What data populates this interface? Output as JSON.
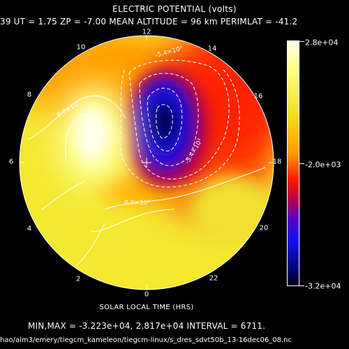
{
  "header": {
    "title": "ELECTRIC POTENTIAL (volts)",
    "params": "39   UT =   1.75   ZP =   -7.00   MEAN ALTITUDE =   96 km   PERIMLAT = -41.2"
  },
  "hour_labels": [
    "12",
    "14",
    "16",
    "18",
    "20",
    "22",
    "0",
    "2",
    "4",
    "6",
    "8",
    "10"
  ],
  "contour_labels": [
    "-5.4×10³",
    "-5.4×10³",
    "8.0×10³",
    "8.0×10³"
  ],
  "x_axis_label": "SOLAR LOCAL TIME (HRS)",
  "colorbar": {
    "max_label": "2.8e+04",
    "mid_label": "-2.0e+03",
    "min_label": "-3.2e+04"
  },
  "footer": {
    "minmax": "MIN,MAX = -3.223e+04, 2.817e+04 INTERVAL =       6711.",
    "path": "hao/aim3/emery/tiegcm_kameleon/tiegcm-linux/s_dres_sdvt50b_13-16dec06_08.nc"
  },
  "colors": {
    "background": "#000000",
    "text": "#ffffff",
    "contour": "#ffffff"
  }
}
